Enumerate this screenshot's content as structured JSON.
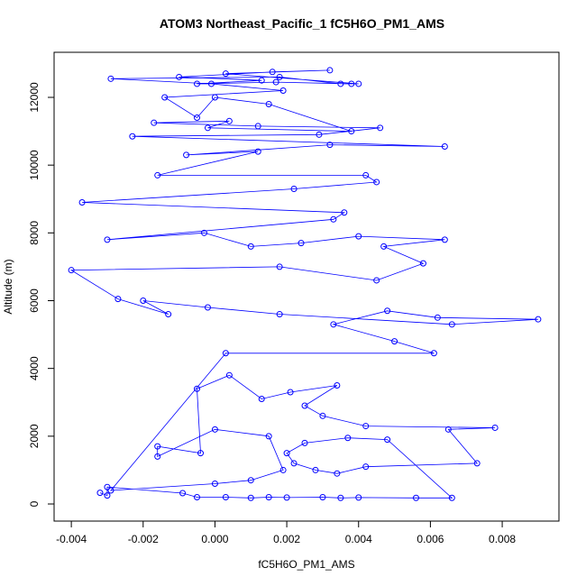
{
  "chart_data": {
    "type": "scatter",
    "lines": true,
    "title": "ATOM3 Northeast_Pacific_1 fC5H6O_PM1_AMS",
    "xlabel": "fC5H6O_PM1_AMS",
    "ylabel": "Altitude (m)",
    "color": "#0000ff",
    "xlim": [
      -0.00448,
      0.00958
    ],
    "ylim": [
      -505,
      13330
    ],
    "xticks": [
      -0.004,
      -0.002,
      {
        "value": 0,
        "label": "0.000"
      },
      0.002,
      0.004,
      0.006,
      0.008
    ],
    "yticks": [
      0,
      2000,
      4000,
      6000,
      8000,
      10000,
      12000
    ],
    "x": [
      -0.0032,
      -0.003,
      -0.003,
      -0.0009,
      -0.0005,
      0.0003,
      0.001,
      0.0015,
      0.002,
      0.003,
      0.0035,
      0.004,
      0.0056,
      0.0066,
      0.0048,
      0.0037,
      0.0025,
      0.002,
      0.0022,
      0.0028,
      0.0034,
      0.0042,
      0.0073,
      0.0065,
      0.0078,
      0.0042,
      0.003,
      0.0025,
      0.0034,
      0.0021,
      0.0013,
      0.0004,
      -0.0005,
      -0.0004,
      -0.0016,
      -0.0016,
      0.0,
      0.0015,
      0.0019,
      0.001,
      0.0,
      -0.0029,
      0.0003,
      0.0061,
      0.005,
      0.0033,
      0.0048,
      0.0062,
      0.009,
      0.0066,
      0.0018,
      -0.0002,
      -0.002,
      -0.0013,
      -0.0027,
      -0.004,
      0.0018,
      0.0045,
      0.0058,
      0.0047,
      0.0064,
      0.004,
      0.0024,
      0.001,
      -0.0003,
      -0.003,
      0.0033,
      0.0036,
      -0.0037,
      0.0022,
      0.0045,
      0.0042,
      -0.0016,
      0.0012,
      -0.0008,
      0.0032,
      0.0064,
      -0.0023,
      0.0029,
      0.0046,
      0.0012,
      -0.0017,
      0.0004,
      -0.0002,
      0.0038,
      0.0015,
      0.0,
      -0.0005,
      -0.0014,
      0.0019,
      -0.0001,
      -0.0029,
      0.0018,
      0.0035,
      0.004,
      0.0003,
      0.0032,
      0.0016,
      -0.001,
      0.0013,
      -0.0005,
      0.0017,
      0.0038
    ],
    "values": [
      330,
      250,
      500,
      320,
      200,
      200,
      180,
      200,
      190,
      200,
      180,
      190,
      180,
      180,
      1900,
      1950,
      1800,
      1500,
      1200,
      1000,
      900,
      1100,
      1200,
      2200,
      2250,
      2300,
      2600,
      2900,
      3500,
      3300,
      3100,
      3800,
      3400,
      1500,
      1700,
      1400,
      2200,
      2000,
      1000,
      700,
      600,
      400,
      4450,
      4450,
      4800,
      5300,
      5700,
      5500,
      5450,
      5300,
      5600,
      5800,
      6000,
      5600,
      6050,
      6900,
      7000,
      6600,
      7100,
      7600,
      7800,
      7900,
      7700,
      7600,
      8000,
      7800,
      8400,
      8600,
      8900,
      9300,
      9500,
      9700,
      9700,
      10400,
      10300,
      10600,
      10550,
      10850,
      10900,
      11100,
      11150,
      11250,
      11300,
      11100,
      11000,
      11800,
      12000,
      11400,
      12000,
      12200,
      12400,
      12550,
      12600,
      12400,
      12400,
      12700,
      12800,
      12750,
      12600,
      12500,
      12400,
      12450,
      12400
    ]
  }
}
